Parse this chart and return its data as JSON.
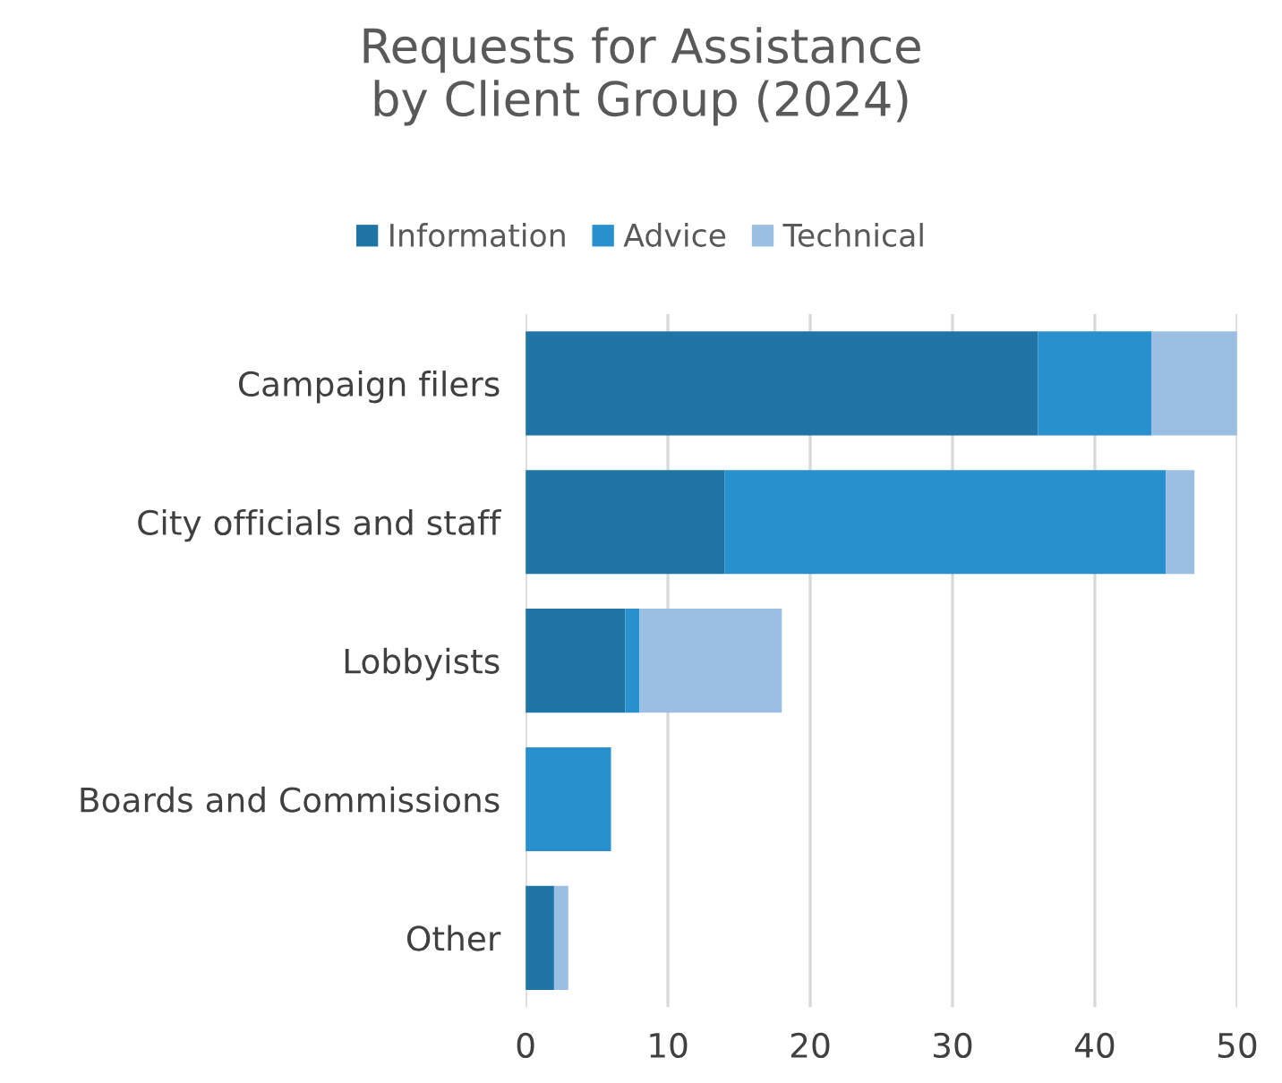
{
  "chart_data": {
    "type": "bar",
    "orientation": "horizontal",
    "stacked": true,
    "title": "Requests for Assistance\nby Client Group (2024)",
    "categories": [
      "Campaign filers",
      "City officials and staff",
      "Lobbyists",
      "Boards and Commissions",
      "Other"
    ],
    "series": [
      {
        "name": "Information",
        "color": "#1f75a6",
        "values": [
          36,
          14,
          7,
          0,
          2
        ]
      },
      {
        "name": "Advice",
        "color": "#2890cc",
        "values": [
          8,
          31,
          1,
          6,
          0
        ]
      },
      {
        "name": "Technical",
        "color": "#9bbfe2",
        "values": [
          6,
          2,
          10,
          0,
          1
        ]
      }
    ],
    "xlim": [
      0,
      50
    ],
    "xticks": [
      0,
      10,
      20,
      30,
      40,
      50
    ],
    "grid": "x",
    "legend": "top"
  }
}
